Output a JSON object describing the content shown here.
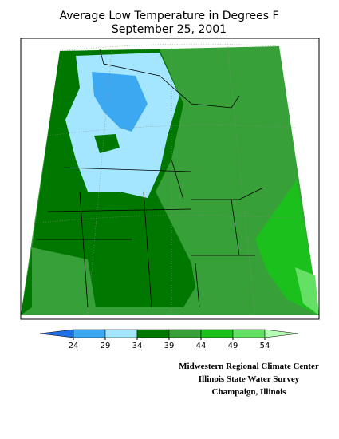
{
  "title": [
    "Average Low Temperature in Degrees F",
    "September 25, 2001"
  ],
  "legend": {
    "ticks": [
      24,
      29,
      34,
      39,
      44,
      49,
      54
    ],
    "colors": [
      "#1f6fe6",
      "#3ca8f2",
      "#a4e6ff",
      "#007800",
      "#38a038",
      "#1cc01c",
      "#64e064",
      "#b4ffb4"
    ]
  },
  "credits": [
    "Midwestern Regional Climate Center",
    "Illinois State Water Survey",
    "Champaign, Illinois"
  ]
}
